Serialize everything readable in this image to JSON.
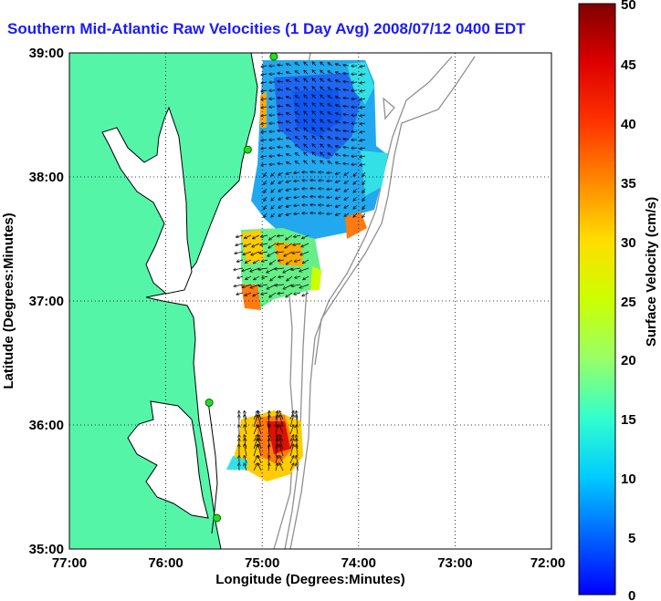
{
  "title": "Southern Mid-Atlantic Raw Velocities (1 Day Avg) 2008/07/12 0400 EDT",
  "xlabel": "Longitude (Degrees:Minutes)",
  "ylabel": "Latitude (Degrees:Minutes)",
  "colorbar_label": "Surface Velocity (cm/s)",
  "x_ticks": [
    "77:00",
    "76:00",
    "75:00",
    "74:00",
    "73:00",
    "72:00"
  ],
  "y_ticks": [
    "39:00",
    "38:00",
    "37:00",
    "36:00",
    "35:00"
  ],
  "cbar_ticks": [
    "50",
    "45",
    "40",
    "35",
    "30",
    "25",
    "20",
    "15",
    "10",
    "5",
    "0"
  ],
  "colors": {
    "land": "#55f5a8",
    "title": "#1a1aff",
    "coast": "#000000",
    "bathymetry": "#909090",
    "station": "#22dd22"
  },
  "chart_data": {
    "type": "heatmap",
    "xlim": [
      -77,
      -72
    ],
    "ylim": [
      35,
      39
    ],
    "clim": [
      0,
      50
    ],
    "colormap": "jet",
    "grid": true,
    "stations": [
      {
        "lon": -74.88,
        "lat": 38.97
      },
      {
        "lon": -75.15,
        "lat": 38.22
      },
      {
        "lon": -75.55,
        "lat": 36.18
      },
      {
        "lon": -75.47,
        "lat": 35.25
      }
    ]
  }
}
